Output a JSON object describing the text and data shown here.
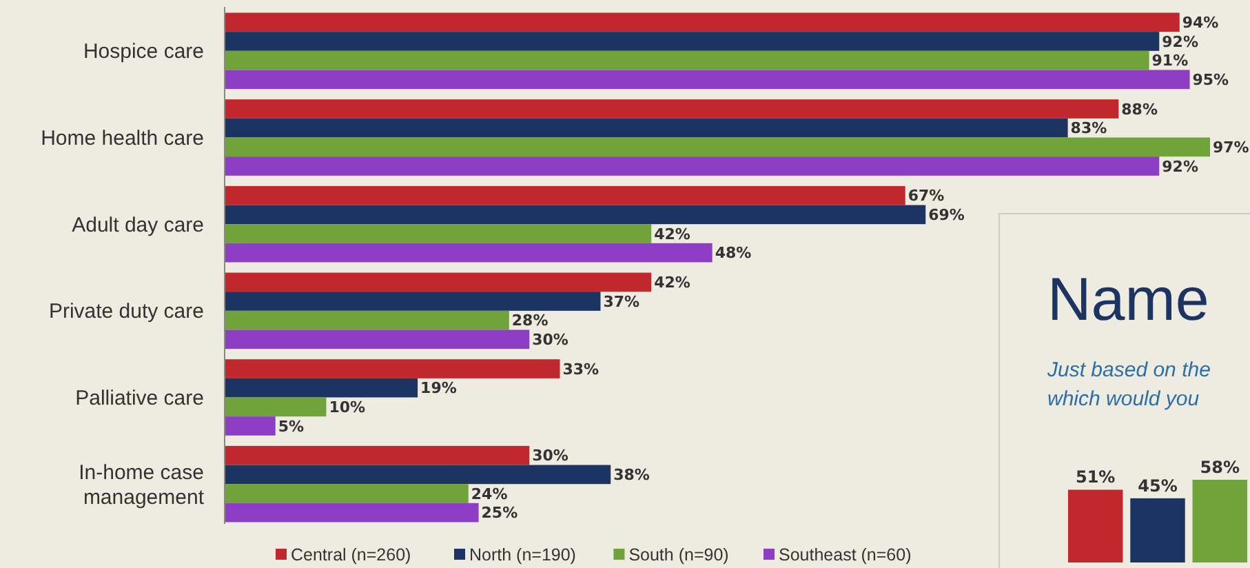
{
  "chart_data": [
    {
      "type": "bar",
      "orientation": "horizontal",
      "categories": [
        "Hospice care",
        "Home health care",
        "Adult day care",
        "Private duty care",
        "Palliative care",
        "In-home case management"
      ],
      "series": [
        {
          "name": "Central (n=260)",
          "color": "#c0282d",
          "values": [
            94,
            88,
            67,
            42,
            33,
            30
          ],
          "value_labels": [
            "94%",
            "88%",
            "67%",
            "42%",
            "33%",
            "30%"
          ]
        },
        {
          "name": "North (n=190)",
          "color": "#1c3461",
          "values": [
            92,
            83,
            69,
            37,
            19,
            38
          ],
          "value_labels": [
            "92%",
            "83%",
            "69%",
            "37%",
            "19%",
            "38%"
          ]
        },
        {
          "name": "South (n=90)",
          "color": "#70a33a",
          "values": [
            91,
            97,
            42,
            28,
            10,
            24
          ],
          "value_labels": [
            "91%",
            "97%",
            "42%",
            "28%",
            "10%",
            "24%"
          ]
        },
        {
          "name": "Southeast (n=60)",
          "color": "#8e3ec4",
          "values": [
            95,
            92,
            48,
            30,
            5,
            25
          ],
          "value_labels": [
            "95%",
            "92%",
            "48%",
            "30%",
            "5%",
            "25%"
          ]
        }
      ],
      "tick_labels": "y",
      "legend": "bottom"
    },
    {
      "type": "bar",
      "title": "Name",
      "subtitle": "Just based on the\nwhich would you",
      "categories": [
        null,
        null,
        null
      ],
      "values": [
        51,
        45,
        58
      ],
      "colors": [
        "#c0282d",
        "#1c3461",
        "#70a33a"
      ],
      "value_labels": [
        "51%",
        "45%",
        "58%"
      ],
      "tick_labels": false,
      "legend": false
    }
  ]
}
